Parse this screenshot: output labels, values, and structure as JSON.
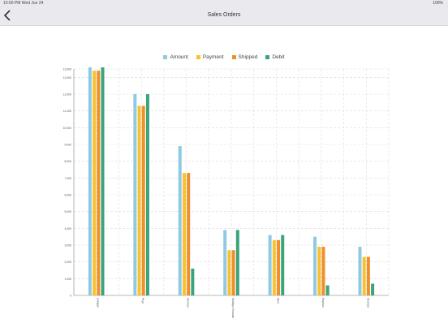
{
  "status_bar": {
    "time": "10:00 PM  Wed Jun 24",
    "battery": "100%"
  },
  "navbar": {
    "title": "Sales Orders",
    "back_icon": "chevron-left-icon"
  },
  "colors": {
    "Amount": "#8fc9e2",
    "Payment": "#f7c232",
    "Shipped": "#f0902a",
    "Debit": "#3aa57b"
  },
  "chart_data": {
    "type": "bar",
    "categories": [
      "Lahajan",
      "Puja",
      "Shohan",
      "Siddiqui Hossain",
      "Nitul",
      "Rayhan",
      "Shahed"
    ],
    "series": [
      {
        "name": "Amount",
        "values": [
          13600,
          12000,
          8900,
          3900,
          3600,
          3500,
          2900
        ]
      },
      {
        "name": "Payment",
        "values": [
          13400,
          11300,
          7300,
          2700,
          3300,
          2900,
          2300
        ]
      },
      {
        "name": "Shipped",
        "values": [
          13400,
          11300,
          7300,
          2700,
          3300,
          2900,
          2300
        ]
      },
      {
        "name": "Debit",
        "values": [
          13600,
          12000,
          1600,
          3900,
          3600,
          600,
          700
        ]
      }
    ],
    "ylim": [
      0,
      13500
    ],
    "yticks": [
      0,
      1000,
      2000,
      3000,
      4000,
      5000,
      6000,
      7000,
      8000,
      9000,
      10000,
      11000,
      12000,
      13000,
      13500
    ],
    "ytick_labels": [
      "0",
      "1,000",
      "2,000",
      "3,000",
      "4,000",
      "5,000",
      "6,000",
      "7,000",
      "8,000",
      "9,000",
      "10,000",
      "11,000",
      "12,000",
      "13,000",
      "13,500"
    ],
    "legend_position": "top-center",
    "grid": true
  }
}
